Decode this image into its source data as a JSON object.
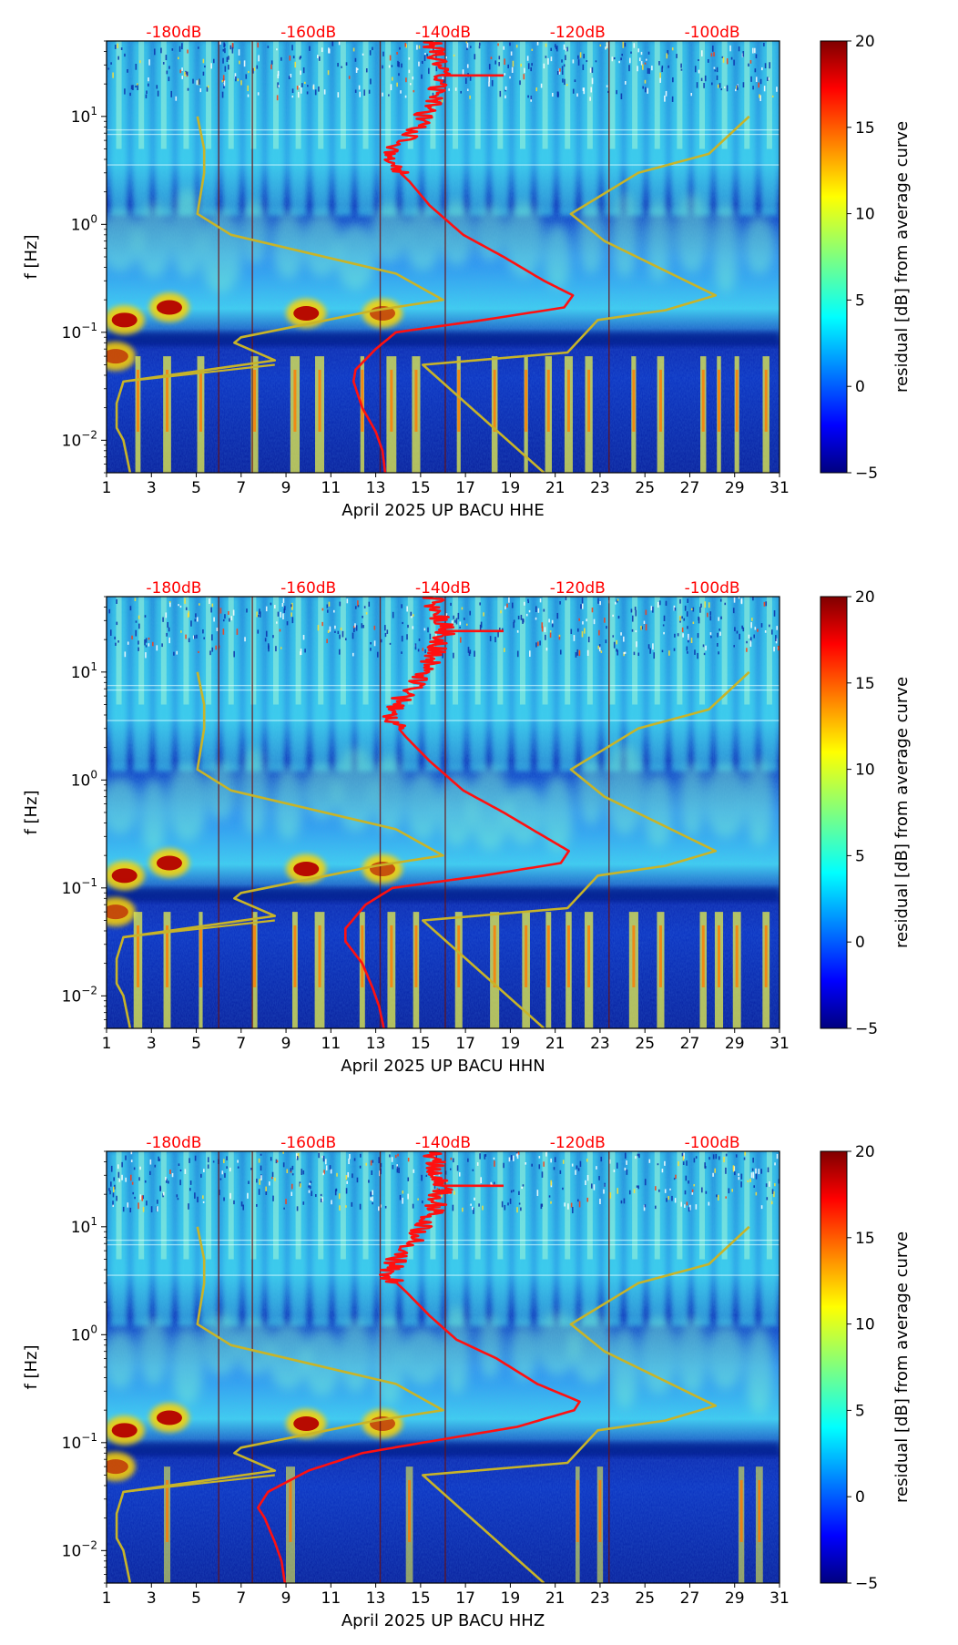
{
  "figure": {
    "ylabel": "f [Hz]",
    "colorbar_label": "residual [dB] from average curve",
    "xticks": [
      "1",
      "3",
      "5",
      "7",
      "9",
      "11",
      "13",
      "15",
      "17",
      "19",
      "21",
      "23",
      "25",
      "27",
      "29",
      "31"
    ],
    "yticks": [
      {
        "base": "10",
        "exp": "1"
      },
      {
        "base": "10",
        "exp": "0"
      },
      {
        "base": "10",
        "exp": "−1"
      },
      {
        "base": "10",
        "exp": "−2"
      }
    ],
    "db_labels": [
      "-180dB",
      "-160dB",
      "-140dB",
      "-120dB",
      "-100dB"
    ],
    "colorbar_ticks": [
      "20",
      "15",
      "10",
      "5",
      "0",
      "−5"
    ]
  },
  "colors": {
    "average_curve": "#ff1010",
    "noise_model": "#c8b428",
    "db_label": "#ff0000",
    "colormap": [
      "#00007f",
      "#0000ff",
      "#007fff",
      "#00ffff",
      "#7fff7f",
      "#ffff00",
      "#ff7f00",
      "#ff0000",
      "#7f0000"
    ]
  },
  "chart_data": [
    {
      "type": "heatmap",
      "title": "April 2025 UP BACU  HHE",
      "xlabel": "April 2025 UP BACU  HHE",
      "ylabel": "f [Hz]",
      "x_range": [
        1,
        31
      ],
      "y_range_hz": [
        0.005,
        50
      ],
      "y_scale": "log",
      "color_range_db": [
        -5,
        20
      ],
      "top_axis_db_range": [
        -190,
        -90
      ],
      "top_axis_labels": [
        "-180dB",
        "-160dB",
        "-140dB",
        "-120dB",
        "-100dB"
      ],
      "average_curve_db": [
        [
          -148.6,
          0.005
        ],
        [
          -149.0,
          0.008
        ],
        [
          -150.0,
          0.012
        ],
        [
          -152.0,
          0.02
        ],
        [
          -153.3,
          0.035
        ],
        [
          -153.0,
          0.045
        ],
        [
          -150.0,
          0.07
        ],
        [
          -147.0,
          0.1
        ],
        [
          -134.0,
          0.13
        ],
        [
          -122.0,
          0.17
        ],
        [
          -120.7,
          0.22
        ],
        [
          -125.0,
          0.3
        ],
        [
          -131.0,
          0.5
        ],
        [
          -137.0,
          0.8
        ],
        [
          -142.0,
          1.5
        ],
        [
          -145.0,
          2.5
        ],
        [
          -147.5,
          3.5
        ],
        [
          -147.0,
          5
        ],
        [
          -144.0,
          8
        ],
        [
          -142.0,
          12
        ],
        [
          -141.0,
          16
        ],
        [
          -140.0,
          24
        ],
        [
          -141.0,
          35
        ],
        [
          -141.5,
          50
        ]
      ],
      "noise_model_curve": [
        [
          -186.5,
          0.005
        ],
        [
          -187.5,
          0.01
        ],
        [
          -188.5,
          0.013
        ],
        [
          -188.5,
          0.022
        ],
        [
          -187.5,
          0.035
        ],
        [
          -165.0,
          0.055
        ],
        [
          -171.0,
          0.08
        ],
        [
          -170.0,
          0.09
        ],
        [
          -150.0,
          0.16
        ],
        [
          -140.0,
          0.2
        ],
        [
          -147.0,
          0.35
        ],
        [
          -171.5,
          0.8
        ],
        [
          -176.5,
          1.25
        ],
        [
          -175.5,
          3
        ],
        [
          -175.5,
          5
        ],
        [
          -176.5,
          10
        ]
      ],
      "high_noise_model_curve": [
        [
          -125.0,
          0.005
        ],
        [
          -143.0,
          0.05
        ],
        [
          -121.5,
          0.065
        ],
        [
          -117.0,
          0.13
        ],
        [
          -107.0,
          0.16
        ],
        [
          -99.5,
          0.22
        ],
        [
          -116.0,
          0.7
        ],
        [
          -121.0,
          1.25
        ],
        [
          -111.0,
          3
        ],
        [
          -100.5,
          4.5
        ],
        [
          -94.5,
          10
        ]
      ],
      "spectrogram_features": [
        "microseism energy near 0.1-0.2 Hz",
        "daily cultural noise bands above ~1 Hz",
        "strong residual peaks around April 2-4 and April 9-10"
      ]
    },
    {
      "type": "heatmap",
      "title": "April 2025 UP BACU  HHN",
      "xlabel": "April 2025 UP BACU  HHN",
      "ylabel": "f [Hz]",
      "x_range": [
        1,
        31
      ],
      "y_range_hz": [
        0.005,
        50
      ],
      "y_scale": "log",
      "color_range_db": [
        -5,
        20
      ],
      "top_axis_db_range": [
        -190,
        -90
      ],
      "top_axis_labels": [
        "-180dB",
        "-160dB",
        "-140dB",
        "-120dB",
        "-100dB"
      ],
      "average_curve_db": [
        [
          -148.8,
          0.005
        ],
        [
          -149.5,
          0.008
        ],
        [
          -150.5,
          0.012
        ],
        [
          -152.0,
          0.02
        ],
        [
          -154.5,
          0.032
        ],
        [
          -154.5,
          0.042
        ],
        [
          -151.5,
          0.07
        ],
        [
          -147.5,
          0.1
        ],
        [
          -134.0,
          0.13
        ],
        [
          -122.5,
          0.17
        ],
        [
          -121.3,
          0.22
        ],
        [
          -125.0,
          0.3
        ],
        [
          -131.0,
          0.5
        ],
        [
          -137.0,
          0.8
        ],
        [
          -142.0,
          1.5
        ],
        [
          -145.5,
          2.5
        ],
        [
          -147.5,
          3.5
        ],
        [
          -147.0,
          5
        ],
        [
          -144.0,
          8
        ],
        [
          -142.0,
          12
        ],
        [
          -141.0,
          16
        ],
        [
          -139.5,
          24
        ],
        [
          -141.0,
          35
        ],
        [
          -141.5,
          50
        ]
      ],
      "noise_model_curve": [
        [
          -186.5,
          0.005
        ],
        [
          -187.5,
          0.01
        ],
        [
          -188.5,
          0.013
        ],
        [
          -188.5,
          0.022
        ],
        [
          -187.5,
          0.035
        ],
        [
          -165.0,
          0.055
        ],
        [
          -171.0,
          0.08
        ],
        [
          -170.0,
          0.09
        ],
        [
          -150.0,
          0.16
        ],
        [
          -140.0,
          0.2
        ],
        [
          -147.0,
          0.35
        ],
        [
          -171.5,
          0.8
        ],
        [
          -176.5,
          1.25
        ],
        [
          -175.5,
          3
        ],
        [
          -175.5,
          5
        ],
        [
          -176.5,
          10
        ]
      ],
      "high_noise_model_curve": [
        [
          -125.0,
          0.005
        ],
        [
          -143.0,
          0.05
        ],
        [
          -121.5,
          0.065
        ],
        [
          -117.0,
          0.13
        ],
        [
          -107.0,
          0.16
        ],
        [
          -99.5,
          0.22
        ],
        [
          -116.0,
          0.7
        ],
        [
          -121.0,
          1.25
        ],
        [
          -111.0,
          3
        ],
        [
          -100.5,
          4.5
        ],
        [
          -94.5,
          10
        ]
      ],
      "spectrogram_features": [
        "microseism energy near 0.1-0.2 Hz",
        "daily cultural noise bands above ~1 Hz",
        "strong residual peaks around April 2-4 and April 9-10"
      ]
    },
    {
      "type": "heatmap",
      "title": "April 2025 UP BACU  HHZ",
      "xlabel": "April 2025 UP BACU  HHZ",
      "ylabel": "f [Hz]",
      "x_range": [
        1,
        31
      ],
      "y_range_hz": [
        0.005,
        50
      ],
      "y_scale": "log",
      "color_range_db": [
        -5,
        20
      ],
      "top_axis_db_range": [
        -190,
        -90
      ],
      "top_axis_labels": [
        "-180dB",
        "-160dB",
        "-140dB",
        "-120dB",
        "-100dB"
      ],
      "average_curve_db": [
        [
          -163.5,
          0.005
        ],
        [
          -164.0,
          0.008
        ],
        [
          -165.0,
          0.012
        ],
        [
          -166.5,
          0.02
        ],
        [
          -167.5,
          0.025
        ],
        [
          -166.0,
          0.035
        ],
        [
          -160.0,
          0.055
        ],
        [
          -152.0,
          0.08
        ],
        [
          -143.0,
          0.1
        ],
        [
          -129.0,
          0.14
        ],
        [
          -120.5,
          0.2
        ],
        [
          -119.7,
          0.24
        ],
        [
          -126.0,
          0.35
        ],
        [
          -132.0,
          0.6
        ],
        [
          -138.0,
          0.9
        ],
        [
          -142.0,
          1.5
        ],
        [
          -145.5,
          2.5
        ],
        [
          -148.0,
          3.5
        ],
        [
          -147.0,
          5
        ],
        [
          -144.0,
          8
        ],
        [
          -142.0,
          12
        ],
        [
          -141.0,
          16
        ],
        [
          -140.0,
          24
        ],
        [
          -141.0,
          35
        ],
        [
          -141.5,
          50
        ]
      ],
      "noise_model_curve": [
        [
          -186.5,
          0.005
        ],
        [
          -187.5,
          0.01
        ],
        [
          -188.5,
          0.013
        ],
        [
          -188.5,
          0.022
        ],
        [
          -187.5,
          0.035
        ],
        [
          -165.0,
          0.055
        ],
        [
          -171.0,
          0.08
        ],
        [
          -170.0,
          0.09
        ],
        [
          -150.0,
          0.16
        ],
        [
          -140.0,
          0.2
        ],
        [
          -147.0,
          0.35
        ],
        [
          -171.5,
          0.8
        ],
        [
          -176.5,
          1.25
        ],
        [
          -175.5,
          3
        ],
        [
          -175.5,
          5
        ],
        [
          -176.5,
          10
        ]
      ],
      "high_noise_model_curve": [
        [
          -125.0,
          0.005
        ],
        [
          -143.0,
          0.05
        ],
        [
          -121.5,
          0.065
        ],
        [
          -117.0,
          0.13
        ],
        [
          -107.0,
          0.16
        ],
        [
          -99.5,
          0.22
        ],
        [
          -116.0,
          0.7
        ],
        [
          -121.0,
          1.25
        ],
        [
          -111.0,
          3
        ],
        [
          -100.5,
          4.5
        ],
        [
          -94.5,
          10
        ]
      ],
      "spectrogram_features": [
        "microseism energy near 0.1-0.2 Hz",
        "daily cultural noise bands above ~1 Hz",
        "strong residual peaks around April 2-4 and April 9-10"
      ]
    }
  ]
}
